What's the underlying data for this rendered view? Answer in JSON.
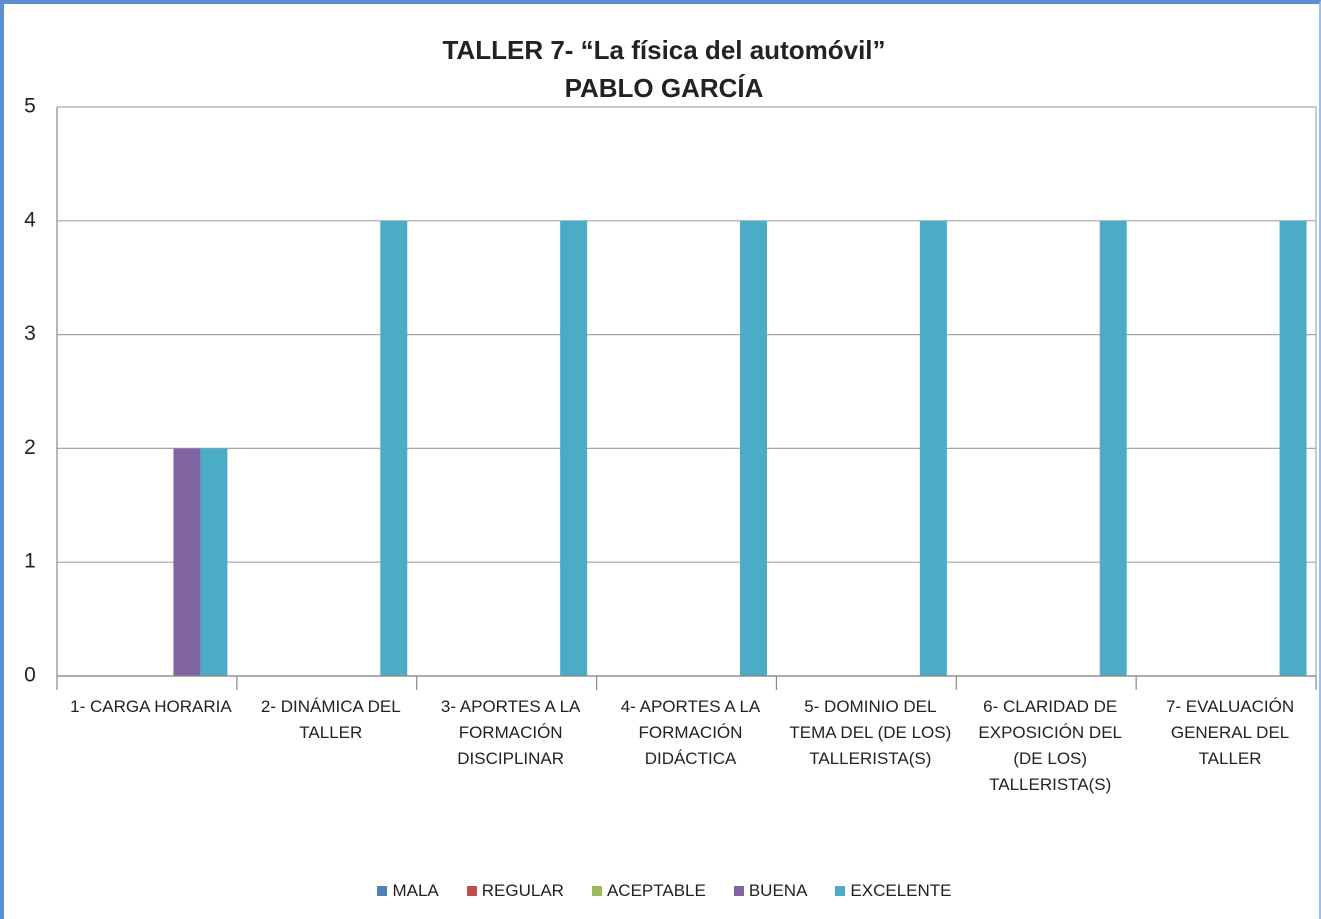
{
  "chart_data": {
    "type": "bar",
    "title": "TALLER 7- “La física del automóvil”",
    "subtitle": "PABLO GARCÍA",
    "categories": [
      "1- CARGA HORARIA",
      "2- DINÁMICA DEL TALLER",
      "3- APORTES A LA FORMACIÓN DISCIPLINAR",
      "4- APORTES A LA FORMACIÓN DIDÁCTICA",
      "5- DOMINIO DEL TEMA DEL (DE LOS) TALLERISTA(S)",
      "6- CLARIDAD DE EXPOSICIÓN DEL (DE LOS) TALLERISTA(S)",
      "7- EVALUACIÓN GENERAL DEL TALLER"
    ],
    "series": [
      {
        "name": "MALA",
        "color": "#4f81bd",
        "values": [
          0,
          0,
          0,
          0,
          0,
          0,
          0
        ]
      },
      {
        "name": "REGULAR",
        "color": "#c0504d",
        "values": [
          0,
          0,
          0,
          0,
          0,
          0,
          0
        ]
      },
      {
        "name": "ACEPTABLE",
        "color": "#9bbb59",
        "values": [
          0,
          0,
          0,
          0,
          0,
          0,
          0
        ]
      },
      {
        "name": "BUENA",
        "color": "#8064a2",
        "values": [
          2,
          0,
          0,
          0,
          0,
          0,
          0
        ]
      },
      {
        "name": "EXCELENTE",
        "color": "#4bacc6",
        "values": [
          2,
          4,
          4,
          4,
          4,
          4,
          4
        ]
      }
    ],
    "ylim": [
      0,
      5
    ],
    "yticks": [
      0,
      1,
      2,
      3,
      4,
      5
    ],
    "grid": true,
    "legend": "bottom"
  }
}
